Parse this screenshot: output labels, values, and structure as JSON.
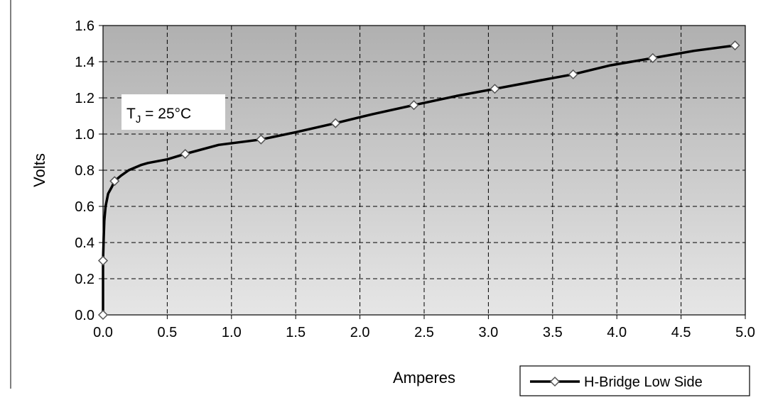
{
  "chart_data": {
    "type": "line",
    "xlabel": "Amperes",
    "ylabel": "Volts",
    "xlim": [
      0,
      5
    ],
    "ylim": [
      0,
      1.6
    ],
    "x_ticks": [
      "0.0",
      "0.5",
      "1.0",
      "1.5",
      "2.0",
      "2.5",
      "3.0",
      "3.5",
      "4.0",
      "4.5",
      "5.0"
    ],
    "y_ticks": [
      "0.0",
      "0.2",
      "0.4",
      "0.6",
      "0.8",
      "1.0",
      "1.2",
      "1.4",
      "1.6"
    ],
    "grid": true,
    "legend": "bottom-right",
    "annotation": {
      "main": "T",
      "subscript": "J",
      "rest": " = 25°C"
    },
    "colors": {
      "line": "#000000",
      "plot_top": "#b0b0b0",
      "plot_bottom": "#e6e6e6",
      "marker_fill": "#ffffff"
    },
    "series": [
      {
        "name": "H-Bridge Low Side",
        "x": [
          0.0,
          0.0,
          0.005,
          0.01,
          0.02,
          0.04,
          0.07,
          0.09,
          0.14,
          0.2,
          0.3,
          0.35,
          0.5,
          0.64,
          0.9,
          1.23,
          1.5,
          1.81,
          2.1,
          2.42,
          2.75,
          3.05,
          3.35,
          3.66,
          3.95,
          4.28,
          4.6,
          4.92
        ],
        "y": [
          0.0,
          0.3,
          0.42,
          0.52,
          0.6,
          0.67,
          0.71,
          0.74,
          0.77,
          0.8,
          0.83,
          0.84,
          0.86,
          0.89,
          0.94,
          0.97,
          1.01,
          1.06,
          1.11,
          1.16,
          1.21,
          1.25,
          1.29,
          1.33,
          1.38,
          1.42,
          1.46,
          1.49
        ]
      }
    ],
    "markers": {
      "x": [
        0.0,
        0.0,
        0.09,
        0.64,
        1.23,
        1.81,
        2.42,
        3.05,
        3.66,
        4.28,
        4.92
      ],
      "y": [
        0.0,
        0.3,
        0.74,
        0.89,
        0.97,
        1.06,
        1.16,
        1.25,
        1.33,
        1.42,
        1.49
      ]
    }
  }
}
